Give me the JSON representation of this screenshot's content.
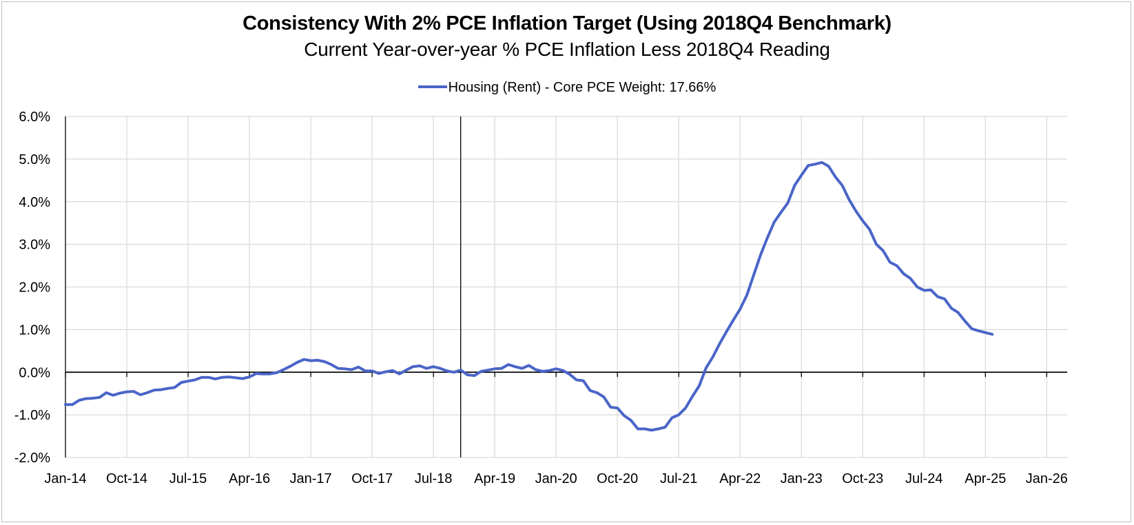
{
  "chart_data": {
    "type": "line",
    "title": "Consistency With 2% PCE Inflation Target (Using 2018Q4 Benchmark)",
    "subtitle": "Current Year-over-year % PCE Inflation Less 2018Q4 Reading",
    "xlabel": "",
    "ylabel": "",
    "ylim": [
      -2.0,
      6.0
    ],
    "y_ticks": [
      -2.0,
      -1.0,
      0.0,
      1.0,
      2.0,
      3.0,
      4.0,
      5.0,
      6.0
    ],
    "y_tick_labels": [
      "-2.0%",
      "-1.0%",
      "0.0%",
      "1.0%",
      "2.0%",
      "3.0%",
      "4.0%",
      "5.0%",
      "6.0%"
    ],
    "x_range_months": [
      0,
      147
    ],
    "x_ticks_months": [
      0,
      9,
      18,
      27,
      36,
      45,
      54,
      63,
      72,
      81,
      90,
      99,
      108,
      117,
      126,
      135,
      144
    ],
    "x_tick_labels": [
      "Jan-14",
      "Oct-14",
      "Jul-15",
      "Apr-16",
      "Jan-17",
      "Oct-17",
      "Jul-18",
      "Apr-19",
      "Jan-20",
      "Oct-20",
      "Jul-21",
      "Apr-22",
      "Jan-23",
      "Oct-23",
      "Jul-24",
      "Apr-25",
      "Jan-26"
    ],
    "reference_line_month": 58,
    "grid": true,
    "legend_position": "top-center",
    "series": [
      {
        "name": "Housing (Rent) - Core PCE Weight: 17.66%",
        "color": "#4a65c8",
        "x_months": [
          0,
          1,
          2,
          3,
          4,
          5,
          6,
          7,
          8,
          9,
          10,
          11,
          12,
          13,
          14,
          15,
          16,
          17,
          18,
          19,
          20,
          21,
          22,
          23,
          24,
          25,
          26,
          27,
          28,
          29,
          30,
          31,
          32,
          33,
          34,
          35,
          36,
          37,
          38,
          39,
          40,
          41,
          42,
          43,
          44,
          45,
          46,
          47,
          48,
          49,
          50,
          51,
          52,
          53,
          54,
          55,
          56,
          57,
          58,
          59,
          60,
          61,
          62,
          63,
          64,
          65,
          66,
          67,
          68,
          69,
          70,
          71,
          72,
          73,
          74,
          75,
          76,
          77,
          78,
          79,
          80,
          81,
          82,
          83,
          84,
          85,
          86,
          87,
          88,
          89,
          90,
          91,
          92,
          93,
          94,
          95,
          96,
          97,
          98,
          99,
          100,
          101,
          102,
          103,
          104,
          105,
          106,
          107,
          108,
          109,
          110,
          111,
          112,
          113,
          114,
          115,
          116,
          117,
          118,
          119,
          120,
          121,
          122,
          123,
          124,
          125,
          126,
          127,
          128,
          129,
          130,
          131,
          132,
          133,
          134,
          135,
          136
        ],
        "values": [
          -0.76,
          -0.76,
          -0.66,
          -0.62,
          -0.61,
          -0.59,
          -0.48,
          -0.54,
          -0.49,
          -0.46,
          -0.45,
          -0.53,
          -0.48,
          -0.42,
          -0.41,
          -0.38,
          -0.36,
          -0.24,
          -0.21,
          -0.18,
          -0.12,
          -0.12,
          -0.16,
          -0.12,
          -0.11,
          -0.13,
          -0.15,
          -0.11,
          -0.03,
          -0.04,
          -0.04,
          -0.01,
          0.06,
          0.14,
          0.23,
          0.3,
          0.27,
          0.28,
          0.25,
          0.18,
          0.09,
          0.08,
          0.06,
          0.12,
          0.03,
          0.03,
          -0.03,
          0.01,
          0.04,
          -0.04,
          0.05,
          0.13,
          0.15,
          0.09,
          0.13,
          0.09,
          0.03,
          0.0,
          0.05,
          -0.06,
          -0.08,
          0.02,
          0.05,
          0.08,
          0.09,
          0.18,
          0.13,
          0.09,
          0.16,
          0.06,
          0.02,
          0.04,
          0.08,
          0.04,
          -0.05,
          -0.18,
          -0.2,
          -0.43,
          -0.48,
          -0.58,
          -0.82,
          -0.84,
          -1.02,
          -1.13,
          -1.33,
          -1.33,
          -1.36,
          -1.33,
          -1.29,
          -1.07,
          -1.0,
          -0.84,
          -0.57,
          -0.32,
          0.1,
          0.36,
          0.67,
          0.95,
          1.22,
          1.48,
          1.81,
          2.28,
          2.75,
          3.15,
          3.52,
          3.75,
          3.97,
          4.38,
          4.62,
          4.85,
          4.88,
          4.92,
          4.83,
          4.58,
          4.38,
          4.05,
          3.78,
          3.55,
          3.35,
          3.0,
          2.85,
          2.58,
          2.5,
          2.31,
          2.2,
          2.0,
          1.92,
          1.93,
          1.77,
          1.72,
          1.5,
          1.4,
          1.2,
          1.02,
          0.97,
          0.93,
          0.89
        ]
      }
    ]
  }
}
